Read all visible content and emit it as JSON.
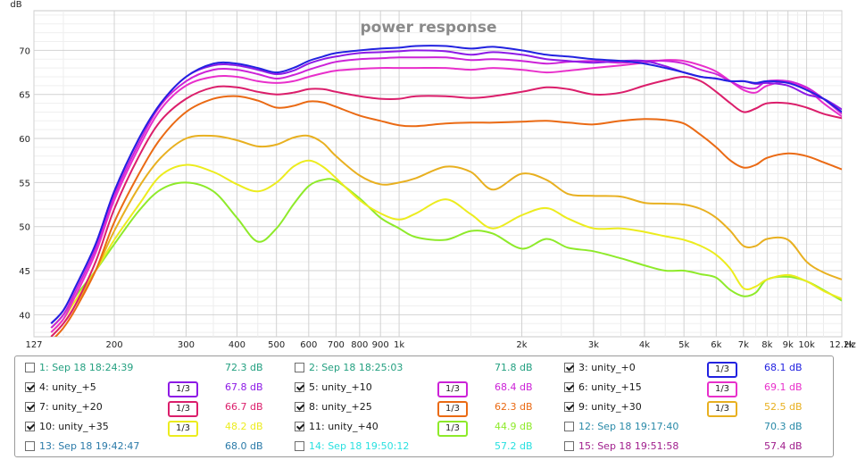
{
  "chart_data": {
    "type": "line",
    "title": "power response",
    "ylabel": "dB",
    "xunit": "Hz",
    "xscale": "log",
    "xlim": [
      127,
      12200
    ],
    "ylim": [
      37.5,
      74.5
    ],
    "yticks": [
      40,
      45,
      50,
      55,
      60,
      65,
      70
    ],
    "xticks": [
      {
        "v": 127,
        "label": "127"
      },
      {
        "v": 200,
        "label": "200"
      },
      {
        "v": 300,
        "label": "300"
      },
      {
        "v": 400,
        "label": "400"
      },
      {
        "v": 500,
        "label": "500"
      },
      {
        "v": 600,
        "label": "600"
      },
      {
        "v": 700,
        "label": "700"
      },
      {
        "v": 800,
        "label": "800"
      },
      {
        "v": 900,
        "label": "900"
      },
      {
        "v": 1000,
        "label": "1k"
      },
      {
        "v": 2000,
        "label": "2k"
      },
      {
        "v": 3000,
        "label": "3k"
      },
      {
        "v": 4000,
        "label": "4k"
      },
      {
        "v": 5000,
        "label": "5k"
      },
      {
        "v": 6000,
        "label": "6k"
      },
      {
        "v": 7000,
        "label": "7k"
      },
      {
        "v": 8000,
        "label": "8k"
      },
      {
        "v": 9000,
        "label": "9k"
      },
      {
        "v": 10000,
        "label": "10k"
      },
      {
        "v": 12200,
        "label": "12.2k"
      }
    ],
    "grid": true,
    "x": [
      140,
      150,
      160,
      180,
      200,
      230,
      260,
      300,
      350,
      400,
      450,
      500,
      550,
      600,
      650,
      700,
      800,
      900,
      1000,
      1100,
      1300,
      1500,
      1700,
      2000,
      2300,
      2600,
      3000,
      3500,
      4000,
      4500,
      5000,
      5500,
      6000,
      6500,
      7000,
      7500,
      8000,
      9000,
      10000,
      11000,
      12200
    ],
    "series": [
      {
        "name": "unity_+0",
        "color": "#2222e0",
        "y": [
          39,
          40.5,
          43,
          48,
          54,
          60,
          64,
          67,
          68.5,
          68.5,
          68,
          67.5,
          68,
          68.8,
          69.3,
          69.7,
          70,
          70.2,
          70.3,
          70.5,
          70.5,
          70.2,
          70.4,
          70,
          69.5,
          69.3,
          69,
          68.8,
          68.5,
          68,
          67.5,
          67,
          66.8,
          66.5,
          66.5,
          66.3,
          66.5,
          66.3,
          65.5,
          64.5,
          63
        ]
      },
      {
        "name": "unity_+5",
        "color": "#8d1ae6",
        "y": [
          39,
          40.5,
          43,
          48,
          54,
          60,
          64,
          67,
          68.3,
          68.3,
          67.8,
          67.3,
          67.7,
          68.5,
          69,
          69.3,
          69.7,
          69.8,
          69.9,
          70,
          69.9,
          69.5,
          69.8,
          69.5,
          69,
          68.8,
          68.6,
          68.8,
          68.8,
          68.2,
          67.5,
          67,
          66.8,
          66.5,
          66.5,
          66.2,
          66.3,
          66,
          65,
          64.5,
          63.3
        ]
      },
      {
        "name": "unity_+10",
        "color": "#cc22d8",
        "y": [
          38.5,
          40,
          42.5,
          47.5,
          53.5,
          59.5,
          63.8,
          66.5,
          67.8,
          67.8,
          67.3,
          66.8,
          67.2,
          67.8,
          68.3,
          68.7,
          69,
          69.1,
          69.2,
          69.2,
          69.2,
          68.9,
          69,
          68.8,
          68.5,
          68.7,
          68.8,
          68.6,
          68.8,
          68.8,
          68.5,
          67.8,
          67.3,
          66.5,
          65.8,
          65.7,
          66.5,
          66.5,
          65.8,
          64.5,
          62.8
        ]
      },
      {
        "name": "unity_+15",
        "color": "#e82fcb",
        "y": [
          38,
          39.5,
          42,
          47,
          53,
          59,
          63.3,
          66,
          67,
          67,
          66.5,
          66.3,
          66.5,
          67,
          67.4,
          67.7,
          67.9,
          68,
          68,
          68,
          68,
          67.8,
          68,
          67.8,
          67.5,
          67.7,
          68,
          68.3,
          68.6,
          68.9,
          68.8,
          68.3,
          67.6,
          66.5,
          65.5,
          65.2,
          66,
          66.4,
          65.6,
          64,
          62.5
        ]
      },
      {
        "name": "unity_+20",
        "color": "#db1e6b",
        "y": [
          37.5,
          39,
          41,
          46,
          52,
          58,
          62,
          64.5,
          65.8,
          65.8,
          65.3,
          65,
          65.2,
          65.6,
          65.6,
          65.3,
          64.8,
          64.5,
          64.5,
          64.8,
          64.8,
          64.6,
          64.8,
          65.3,
          65.8,
          65.6,
          65,
          65.2,
          66,
          66.6,
          67,
          66.5,
          65.3,
          64,
          63,
          63.4,
          64,
          64,
          63.5,
          62.8,
          62.3
        ]
      },
      {
        "name": "unity_+25",
        "color": "#ea6a14",
        "y": [
          37,
          38.5,
          40.5,
          45,
          50.5,
          56,
          60,
          63,
          64.5,
          64.8,
          64.3,
          63.5,
          63.7,
          64.2,
          64.1,
          63.6,
          62.6,
          62,
          61.5,
          61.4,
          61.7,
          61.8,
          61.8,
          61.9,
          62,
          61.8,
          61.6,
          62,
          62.2,
          62.1,
          61.7,
          60.4,
          59,
          57.5,
          56.7,
          57,
          57.8,
          58.3,
          58,
          57.3,
          56.5
        ]
      },
      {
        "name": "unity_+30",
        "color": "#e8b020",
        "y": [
          37.5,
          39,
          41,
          45,
          49.5,
          54.5,
          57.8,
          60,
          60.3,
          59.8,
          59.1,
          59.3,
          60.1,
          60.3,
          59.5,
          58,
          55.8,
          54.8,
          55,
          55.5,
          56.8,
          56.2,
          54.2,
          56,
          55.3,
          53.7,
          53.5,
          53.4,
          52.7,
          52.6,
          52.5,
          52,
          51,
          49.5,
          47.8,
          47.8,
          48.6,
          48.5,
          46,
          44.8,
          44
        ]
      },
      {
        "name": "unity_+35",
        "color": "#ecec1e",
        "y": [
          38,
          39.5,
          41.5,
          45,
          48.5,
          52.5,
          55.8,
          57,
          56.2,
          54.8,
          54,
          55,
          56.8,
          57.5,
          56.8,
          55.5,
          53,
          51.5,
          50.8,
          51.5,
          53.1,
          51.4,
          49.8,
          51.3,
          52.1,
          50.9,
          49.8,
          49.8,
          49.4,
          48.9,
          48.5,
          47.8,
          46.8,
          45.2,
          43,
          43.2,
          44,
          44.5,
          43.8,
          42.7,
          41.8
        ]
      },
      {
        "name": "unity_+40",
        "color": "#8eea2a",
        "y": [
          38.5,
          40,
          42,
          45,
          48,
          51.8,
          54.2,
          55,
          54,
          51,
          48.3,
          49.8,
          52.5,
          54.6,
          55.3,
          55.2,
          53.2,
          51,
          49.8,
          48.8,
          48.5,
          49.5,
          49.2,
          47.5,
          48.6,
          47.6,
          47.2,
          46.4,
          45.6,
          45,
          45,
          44.6,
          44.2,
          42.8,
          42.1,
          42.5,
          44,
          44.3,
          43.8,
          42.8,
          41.6
        ]
      }
    ]
  },
  "legend": {
    "smooth_label": "1/3",
    "entries": [
      {
        "label": "1: Sep 18 18:24:39",
        "value": "72.3 dB",
        "checked": false,
        "smooth": false,
        "color": "#23a080"
      },
      {
        "label": "2: Sep 18 18:25:03",
        "value": "71.8 dB",
        "checked": false,
        "smooth": false,
        "color": "#23a080"
      },
      {
        "label": "3: unity_+0",
        "value": "68.1 dB",
        "checked": true,
        "smooth": true,
        "color": "#2222e0"
      },
      {
        "label": "4: unity_+5",
        "value": "67.8 dB",
        "checked": true,
        "smooth": true,
        "color": "#8d1ae6"
      },
      {
        "label": "5: unity_+10",
        "value": "68.4 dB",
        "checked": true,
        "smooth": true,
        "color": "#cc22d8"
      },
      {
        "label": "6: unity_+15",
        "value": "69.1 dB",
        "checked": true,
        "smooth": true,
        "color": "#e82fcb"
      },
      {
        "label": "7: unity_+20",
        "value": "66.7 dB",
        "checked": true,
        "smooth": true,
        "color": "#db1e6b"
      },
      {
        "label": "8: unity_+25",
        "value": "62.3 dB",
        "checked": true,
        "smooth": true,
        "color": "#ea6a14"
      },
      {
        "label": "9: unity_+30",
        "value": "52.5 dB",
        "checked": true,
        "smooth": true,
        "color": "#e8b020"
      },
      {
        "label": "10: unity_+35",
        "value": "48.2 dB",
        "checked": true,
        "smooth": true,
        "color": "#ecec1e"
      },
      {
        "label": "11: unity_+40",
        "value": "44.9 dB",
        "checked": true,
        "smooth": true,
        "color": "#8eea2a"
      },
      {
        "label": "12: Sep 18 19:17:40",
        "value": "70.3 dB",
        "checked": false,
        "smooth": false,
        "color": "#2a8aa8"
      },
      {
        "label": "13: Sep 18 19:42:47",
        "value": "68.0 dB",
        "checked": false,
        "smooth": false,
        "color": "#2a7aa8"
      },
      {
        "label": "14: Sep 18 19:50:12",
        "value": "57.2 dB",
        "checked": false,
        "smooth": false,
        "color": "#28e0e0"
      },
      {
        "label": "15: Sep 18 19:51:58",
        "value": "57.4 dB",
        "checked": false,
        "smooth": false,
        "color": "#a01e8c"
      }
    ]
  }
}
